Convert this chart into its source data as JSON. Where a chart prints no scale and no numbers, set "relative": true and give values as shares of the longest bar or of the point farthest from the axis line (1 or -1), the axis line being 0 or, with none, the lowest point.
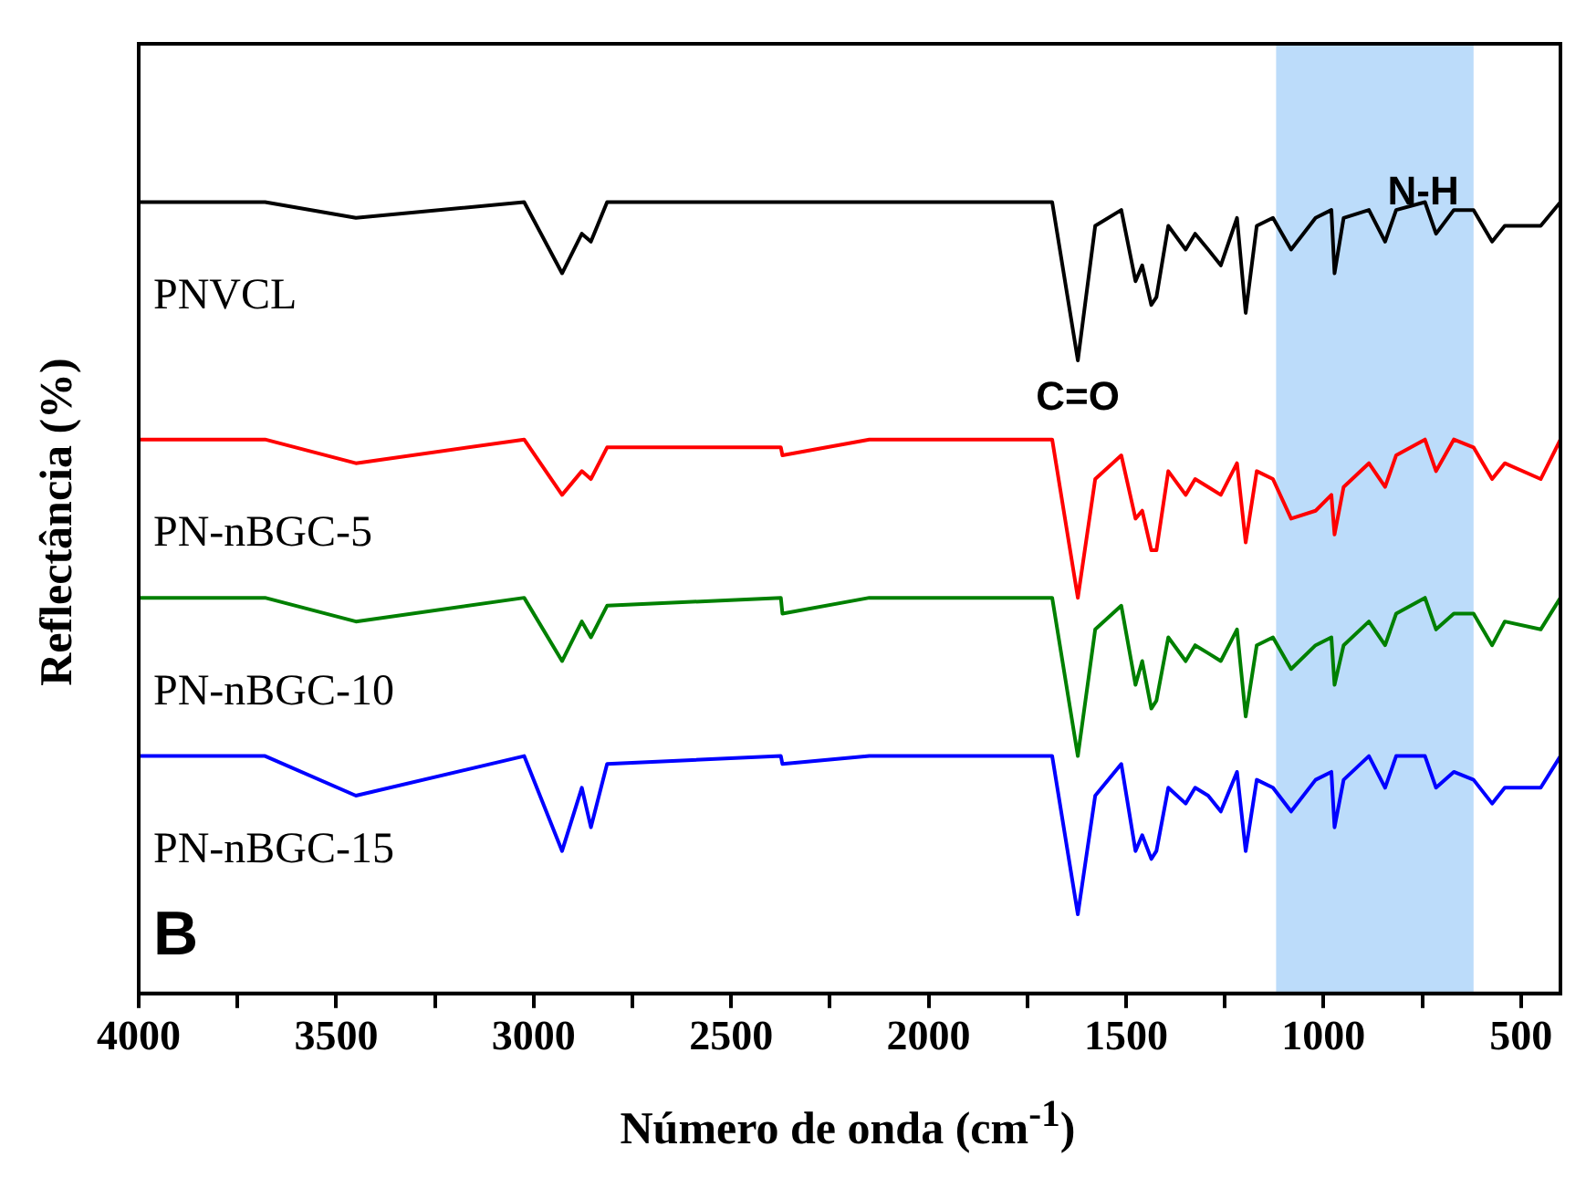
{
  "chart_data": {
    "type": "line",
    "relative": true,
    "xlabel": "Número de onda (cm$^{-1}$)",
    "ylabel": "Reflectância (%)",
    "x": [
      4000,
      3680,
      3450,
      3024,
      2928,
      2878,
      2855,
      2814,
      2374,
      2370,
      2150,
      1687,
      1622,
      1578,
      1512,
      1476,
      1459,
      1436,
      1423,
      1393,
      1349,
      1325,
      1292,
      1260,
      1219,
      1197,
      1169,
      1128,
      1082,
      1020,
      980,
      972,
      949,
      885,
      844,
      816,
      743,
      715,
      670,
      620,
      573,
      541,
      450,
      400
    ],
    "xlim": [
      4000,
      400
    ],
    "xticks": [
      4000,
      {
        "value": 3750,
        "label": null
      },
      3500,
      {
        "value": 3250,
        "label": null
      },
      3000,
      {
        "value": 2750,
        "label": null
      },
      2500,
      {
        "value": 2250,
        "label": null
      },
      2000,
      {
        "value": 1750,
        "label": null
      },
      1500,
      {
        "value": 1250,
        "label": null
      },
      1000,
      {
        "value": 750,
        "label": null
      },
      500
    ],
    "series": [
      {
        "name": "PNVCL",
        "color": "#000000",
        "values": [
          1.0,
          1.0,
          0.98,
          1.0,
          0.91,
          0.96,
          0.95,
          1.0,
          1.0,
          1.0,
          1.0,
          1.0,
          0.8,
          0.97,
          0.99,
          0.9,
          0.92,
          0.87,
          0.88,
          0.97,
          0.94,
          0.96,
          0.94,
          0.92,
          0.98,
          0.86,
          0.97,
          0.98,
          0.94,
          0.98,
          0.99,
          0.91,
          0.98,
          0.99,
          0.95,
          0.99,
          1.0,
          0.96,
          0.99,
          0.99,
          0.95,
          0.97,
          0.97,
          1.0
        ]
      },
      {
        "name": "PN-nBGC-5",
        "color": "#ff0000",
        "values": [
          0.7,
          0.7,
          0.67,
          0.7,
          0.63,
          0.66,
          0.65,
          0.69,
          0.69,
          0.68,
          0.7,
          0.7,
          0.5,
          0.65,
          0.68,
          0.6,
          0.61,
          0.56,
          0.56,
          0.66,
          0.63,
          0.65,
          0.64,
          0.63,
          0.67,
          0.57,
          0.66,
          0.65,
          0.6,
          0.61,
          0.63,
          0.58,
          0.64,
          0.67,
          0.64,
          0.68,
          0.7,
          0.66,
          0.7,
          0.69,
          0.65,
          0.67,
          0.65,
          0.7
        ]
      },
      {
        "name": "PN-nBGC-10",
        "color": "#008000",
        "values": [
          0.5,
          0.5,
          0.47,
          0.5,
          0.42,
          0.47,
          0.45,
          0.49,
          0.5,
          0.48,
          0.5,
          0.5,
          0.3,
          0.46,
          0.49,
          0.39,
          0.42,
          0.36,
          0.37,
          0.45,
          0.42,
          0.44,
          0.43,
          0.42,
          0.46,
          0.35,
          0.44,
          0.45,
          0.41,
          0.44,
          0.45,
          0.39,
          0.44,
          0.47,
          0.44,
          0.48,
          0.5,
          0.46,
          0.48,
          0.48,
          0.44,
          0.47,
          0.46,
          0.5
        ]
      },
      {
        "name": "PN-nBGC-15",
        "color": "#0000ff",
        "values": [
          0.3,
          0.3,
          0.25,
          0.3,
          0.18,
          0.26,
          0.21,
          0.29,
          0.3,
          0.29,
          0.3,
          0.3,
          0.1,
          0.25,
          0.29,
          0.18,
          0.2,
          0.17,
          0.18,
          0.26,
          0.24,
          0.26,
          0.25,
          0.23,
          0.28,
          0.18,
          0.27,
          0.26,
          0.23,
          0.27,
          0.28,
          0.21,
          0.27,
          0.3,
          0.26,
          0.3,
          0.3,
          0.26,
          0.28,
          0.27,
          0.24,
          0.26,
          0.26,
          0.3
        ]
      }
    ],
    "bands": [
      {
        "axis": "x",
        "from": 1120,
        "to": 620,
        "label": "N-H",
        "color": "#bcdcfa"
      }
    ],
    "annotations": [
      {
        "text": "C=O",
        "x": 1622,
        "y": 0.8
      },
      "B"
    ],
    "legend": false,
    "grid": false
  }
}
